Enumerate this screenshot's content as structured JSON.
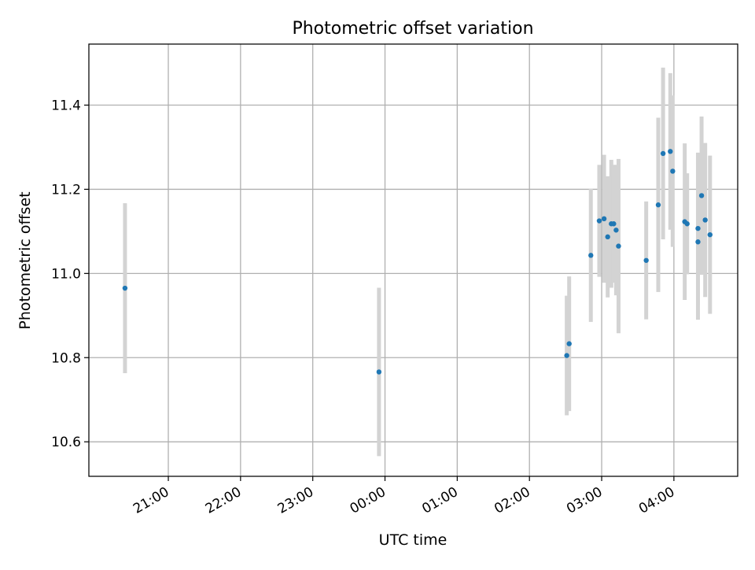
{
  "chart_data": {
    "type": "scatter",
    "title": "Photometric offset variation",
    "xlabel": "UTC time",
    "ylabel": "Photometric offset",
    "x_axis": "time (UTC, minutes after 20:00)",
    "xlim": [
      -6,
      533
    ],
    "ylim": [
      10.518,
      11.545
    ],
    "x_tick_labels": [
      "21:00",
      "22:00",
      "23:00",
      "00:00",
      "01:00",
      "02:00",
      "03:00",
      "04:00"
    ],
    "x_tick_values": [
      60,
      120,
      180,
      240,
      300,
      360,
      420,
      480
    ],
    "y_tick_labels": [
      "10.6",
      "10.8",
      "11.0",
      "11.2",
      "11.4"
    ],
    "y_tick_values": [
      10.6,
      10.8,
      11.0,
      11.2,
      11.4
    ],
    "grid": true,
    "colors": {
      "marker": "#1f77b4",
      "errorbar": "#d3d3d3",
      "grid": "#b0b0b0"
    },
    "points": [
      {
        "x": "20:24",
        "y": 10.965,
        "err": 0.202
      },
      {
        "x": "23:55",
        "y": 10.766,
        "err": 0.2
      },
      {
        "x": "02:31",
        "y": 10.805,
        "err": 0.142
      },
      {
        "x": "02:33",
        "y": 10.833,
        "err": 0.16
      },
      {
        "x": "02:51",
        "y": 11.043,
        "err": 0.158
      },
      {
        "x": "02:58",
        "y": 11.125,
        "err": 0.133
      },
      {
        "x": "03:02",
        "y": 11.13,
        "err": 0.152
      },
      {
        "x": "03:05",
        "y": 11.087,
        "err": 0.144
      },
      {
        "x": "03:08",
        "y": 11.118,
        "err": 0.152
      },
      {
        "x": "03:10",
        "y": 11.118,
        "err": 0.14
      },
      {
        "x": "03:12",
        "y": 11.103,
        "err": 0.155
      },
      {
        "x": "03:14",
        "y": 11.065,
        "err": 0.207
      },
      {
        "x": "03:37",
        "y": 11.031,
        "err": 0.14
      },
      {
        "x": "03:47",
        "y": 11.163,
        "err": 0.207
      },
      {
        "x": "03:51",
        "y": 11.285,
        "err": 0.204
      },
      {
        "x": "03:57",
        "y": 11.29,
        "err": 0.186
      },
      {
        "x": "03:59",
        "y": 11.243,
        "err": 0.18
      },
      {
        "x": "04:09",
        "y": 11.123,
        "err": 0.186
      },
      {
        "x": "04:11",
        "y": 11.118,
        "err": 0.12
      },
      {
        "x": "04:20",
        "y": 11.075,
        "err": 0.185
      },
      {
        "x": "04:20",
        "y": 11.107,
        "err": 0.18
      },
      {
        "x": "04:23",
        "y": 11.185,
        "err": 0.188
      },
      {
        "x": "04:26",
        "y": 11.127,
        "err": 0.183
      },
      {
        "x": "04:30",
        "y": 11.092,
        "err": 0.188
      }
    ]
  }
}
